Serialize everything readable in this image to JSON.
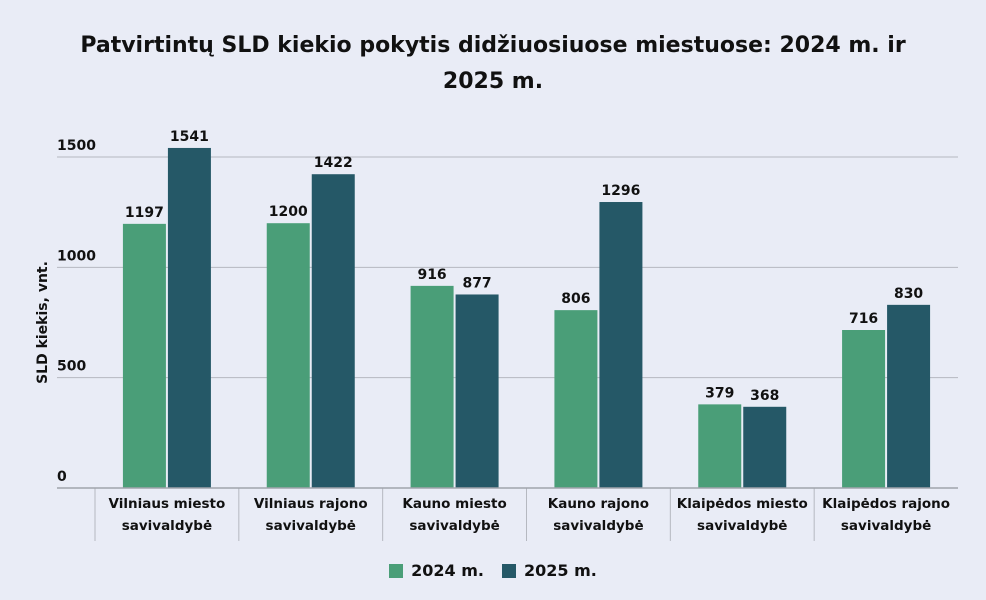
{
  "chart_data": {
    "type": "bar",
    "title": "Patvirtintų SLD kiekio pokytis didžiuosiuose miestuose: 2024 m. ir 2025 m.",
    "xlabel": "",
    "ylabel": "SLD kiekis, vnt.",
    "ylim": [
      0,
      1500
    ],
    "yticks": [
      0,
      500,
      1000,
      1500
    ],
    "grid": true,
    "legend_position": "bottom",
    "categories": [
      [
        "Vilniaus miesto",
        "savivaldybė"
      ],
      [
        "Vilniaus rajono",
        "savivaldybė"
      ],
      [
        "Kauno miesto",
        "savivaldybė"
      ],
      [
        "Kauno rajono",
        "savivaldybė"
      ],
      [
        "Klaipėdos miesto",
        "savivaldybė"
      ],
      [
        "Klaipėdos rajono",
        "savivaldybė"
      ]
    ],
    "series": [
      {
        "name": "2024 m.",
        "color": "#4a9e78",
        "values": [
          1197,
          1200,
          916,
          806,
          379,
          716
        ]
      },
      {
        "name": "2025 m.",
        "color": "#255867",
        "values": [
          1541,
          1422,
          877,
          1296,
          368,
          830
        ]
      }
    ]
  }
}
